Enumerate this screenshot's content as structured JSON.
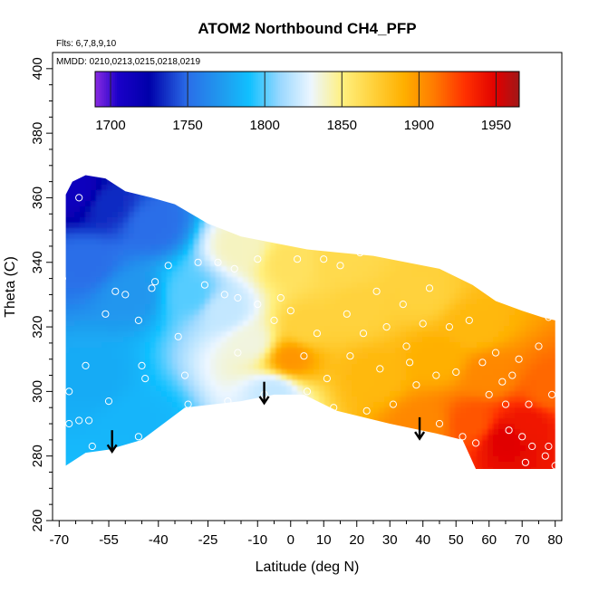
{
  "chart_data": {
    "type": "heatmap",
    "title": "ATOM2 Northbound CH4_PFP",
    "annotations": [
      "Flts: 6,7,8,9,10",
      "MMDD: 0210,0213,0215,0218,0219"
    ],
    "xlabel": "Latitude (deg N)",
    "ylabel": "Theta (C)",
    "xlim": [
      -72,
      82
    ],
    "ylim": [
      260,
      405
    ],
    "x_ticks": [
      -70,
      -55,
      -40,
      -25,
      -10,
      0,
      10,
      20,
      30,
      40,
      50,
      60,
      70,
      80
    ],
    "y_ticks": [
      260,
      280,
      300,
      320,
      340,
      360,
      380,
      400
    ],
    "colorbar": {
      "ticks": [
        1700,
        1750,
        1800,
        1850,
        1900,
        1950
      ],
      "range": [
        1690,
        1965
      ],
      "stops": [
        {
          "value": 1690,
          "color": "#8a2be2"
        },
        {
          "value": 1705,
          "color": "#1a00c8"
        },
        {
          "value": 1725,
          "color": "#0000aa"
        },
        {
          "value": 1750,
          "color": "#2a6ee8"
        },
        {
          "value": 1775,
          "color": "#1ea0f0"
        },
        {
          "value": 1790,
          "color": "#10c0ff"
        },
        {
          "value": 1810,
          "color": "#9ad8ff"
        },
        {
          "value": 1830,
          "color": "#ecf6ff"
        },
        {
          "value": 1850,
          "color": "#fff080"
        },
        {
          "value": 1870,
          "color": "#ffd23c"
        },
        {
          "value": 1890,
          "color": "#ffb000"
        },
        {
          "value": 1910,
          "color": "#ff7a00"
        },
        {
          "value": 1930,
          "color": "#ff3000"
        },
        {
          "value": 1950,
          "color": "#e00000"
        },
        {
          "value": 1965,
          "color": "#a01818"
        }
      ]
    },
    "field_points": [
      {
        "lat": -65,
        "theta": 362,
        "ch4": 1712
      },
      {
        "lat": -55,
        "theta": 358,
        "ch4": 1735
      },
      {
        "lat": -42,
        "theta": 352,
        "ch4": 1750
      },
      {
        "lat": -62,
        "theta": 340,
        "ch4": 1750
      },
      {
        "lat": -48,
        "theta": 330,
        "ch4": 1770
      },
      {
        "lat": -60,
        "theta": 305,
        "ch4": 1780
      },
      {
        "lat": -45,
        "theta": 290,
        "ch4": 1785
      },
      {
        "lat": -30,
        "theta": 330,
        "ch4": 1800
      },
      {
        "lat": -20,
        "theta": 325,
        "ch4": 1820
      },
      {
        "lat": -12,
        "theta": 315,
        "ch4": 1835
      },
      {
        "lat": -15,
        "theta": 345,
        "ch4": 1840
      },
      {
        "lat": -5,
        "theta": 300,
        "ch4": 1820
      },
      {
        "lat": 0,
        "theta": 340,
        "ch4": 1860
      },
      {
        "lat": 5,
        "theta": 320,
        "ch4": 1870
      },
      {
        "lat": 0,
        "theta": 310,
        "ch4": 1900
      },
      {
        "lat": 15,
        "theta": 340,
        "ch4": 1865
      },
      {
        "lat": 20,
        "theta": 325,
        "ch4": 1870
      },
      {
        "lat": 25,
        "theta": 305,
        "ch4": 1885
      },
      {
        "lat": 40,
        "theta": 330,
        "ch4": 1870
      },
      {
        "lat": 45,
        "theta": 310,
        "ch4": 1890
      },
      {
        "lat": 40,
        "theta": 290,
        "ch4": 1905
      },
      {
        "lat": 55,
        "theta": 320,
        "ch4": 1885
      },
      {
        "lat": 60,
        "theta": 305,
        "ch4": 1905
      },
      {
        "lat": 55,
        "theta": 290,
        "ch4": 1920
      },
      {
        "lat": 65,
        "theta": 285,
        "ch4": 1950
      },
      {
        "lat": 72,
        "theta": 290,
        "ch4": 1940
      },
      {
        "lat": 78,
        "theta": 300,
        "ch4": 1915
      }
    ],
    "samples": [
      {
        "lat": -64,
        "theta": 360
      },
      {
        "lat": -69,
        "theta": 335
      },
      {
        "lat": -67,
        "theta": 300
      },
      {
        "lat": -67,
        "theta": 290
      },
      {
        "lat": -64,
        "theta": 291
      },
      {
        "lat": -61,
        "theta": 291
      },
      {
        "lat": -62,
        "theta": 308
      },
      {
        "lat": -60,
        "theta": 283
      },
      {
        "lat": -56,
        "theta": 324
      },
      {
        "lat": -55,
        "theta": 297
      },
      {
        "lat": -53,
        "theta": 331
      },
      {
        "lat": -50,
        "theta": 330
      },
      {
        "lat": -46,
        "theta": 322
      },
      {
        "lat": -45,
        "theta": 308
      },
      {
        "lat": -44,
        "theta": 304
      },
      {
        "lat": -42,
        "theta": 332
      },
      {
        "lat": -41,
        "theta": 334
      },
      {
        "lat": -46,
        "theta": 286
      },
      {
        "lat": -37,
        "theta": 339
      },
      {
        "lat": -34,
        "theta": 317
      },
      {
        "lat": -32,
        "theta": 305
      },
      {
        "lat": -31,
        "theta": 296
      },
      {
        "lat": -28,
        "theta": 340
      },
      {
        "lat": -26,
        "theta": 333
      },
      {
        "lat": -22,
        "theta": 340
      },
      {
        "lat": -20,
        "theta": 330
      },
      {
        "lat": -19,
        "theta": 297
      },
      {
        "lat": -17,
        "theta": 338
      },
      {
        "lat": -16,
        "theta": 329
      },
      {
        "lat": -16,
        "theta": 312
      },
      {
        "lat": -10,
        "theta": 341
      },
      {
        "lat": -10,
        "theta": 327
      },
      {
        "lat": -8,
        "theta": 299
      },
      {
        "lat": -5,
        "theta": 322
      },
      {
        "lat": -3,
        "theta": 329
      },
      {
        "lat": 0,
        "theta": 325
      },
      {
        "lat": 2,
        "theta": 341
      },
      {
        "lat": 4,
        "theta": 311
      },
      {
        "lat": 5,
        "theta": 300
      },
      {
        "lat": 8,
        "theta": 318
      },
      {
        "lat": 10,
        "theta": 341
      },
      {
        "lat": 11,
        "theta": 304
      },
      {
        "lat": 13,
        "theta": 295
      },
      {
        "lat": 15,
        "theta": 339
      },
      {
        "lat": 17,
        "theta": 324
      },
      {
        "lat": 18,
        "theta": 311
      },
      {
        "lat": 21,
        "theta": 343
      },
      {
        "lat": 22,
        "theta": 318
      },
      {
        "lat": 23,
        "theta": 294
      },
      {
        "lat": 26,
        "theta": 331
      },
      {
        "lat": 27,
        "theta": 307
      },
      {
        "lat": 29,
        "theta": 320
      },
      {
        "lat": 30,
        "theta": 344
      },
      {
        "lat": 31,
        "theta": 296
      },
      {
        "lat": 34,
        "theta": 327
      },
      {
        "lat": 35,
        "theta": 314
      },
      {
        "lat": 36,
        "theta": 309
      },
      {
        "lat": 38,
        "theta": 302
      },
      {
        "lat": 40,
        "theta": 321
      },
      {
        "lat": 42,
        "theta": 332
      },
      {
        "lat": 44,
        "theta": 305
      },
      {
        "lat": 45,
        "theta": 290
      },
      {
        "lat": 47,
        "theta": 285
      },
      {
        "lat": 48,
        "theta": 320
      },
      {
        "lat": 50,
        "theta": 306
      },
      {
        "lat": 52,
        "theta": 286
      },
      {
        "lat": 54,
        "theta": 322
      },
      {
        "lat": 56,
        "theta": 284
      },
      {
        "lat": 58,
        "theta": 309
      },
      {
        "lat": 60,
        "theta": 299
      },
      {
        "lat": 62,
        "theta": 312
      },
      {
        "lat": 64,
        "theta": 303
      },
      {
        "lat": 65,
        "theta": 296
      },
      {
        "lat": 66,
        "theta": 288
      },
      {
        "lat": 67,
        "theta": 305
      },
      {
        "lat": 69,
        "theta": 310
      },
      {
        "lat": 70,
        "theta": 286
      },
      {
        "lat": 71,
        "theta": 278
      },
      {
        "lat": 72,
        "theta": 296
      },
      {
        "lat": 73,
        "theta": 283
      },
      {
        "lat": 75,
        "theta": 314
      },
      {
        "lat": 77,
        "theta": 280
      },
      {
        "lat": 78,
        "theta": 283
      },
      {
        "lat": 78,
        "theta": 323
      },
      {
        "lat": 79,
        "theta": 299
      },
      {
        "lat": 80,
        "theta": 277
      }
    ],
    "arrows": [
      {
        "lat": -54,
        "theta_top": 288,
        "theta_tip": 281.5
      },
      {
        "lat": -8,
        "theta_top": 303,
        "theta_tip": 296.5
      },
      {
        "lat": 39,
        "theta_top": 292,
        "theta_tip": 285.5
      }
    ]
  }
}
